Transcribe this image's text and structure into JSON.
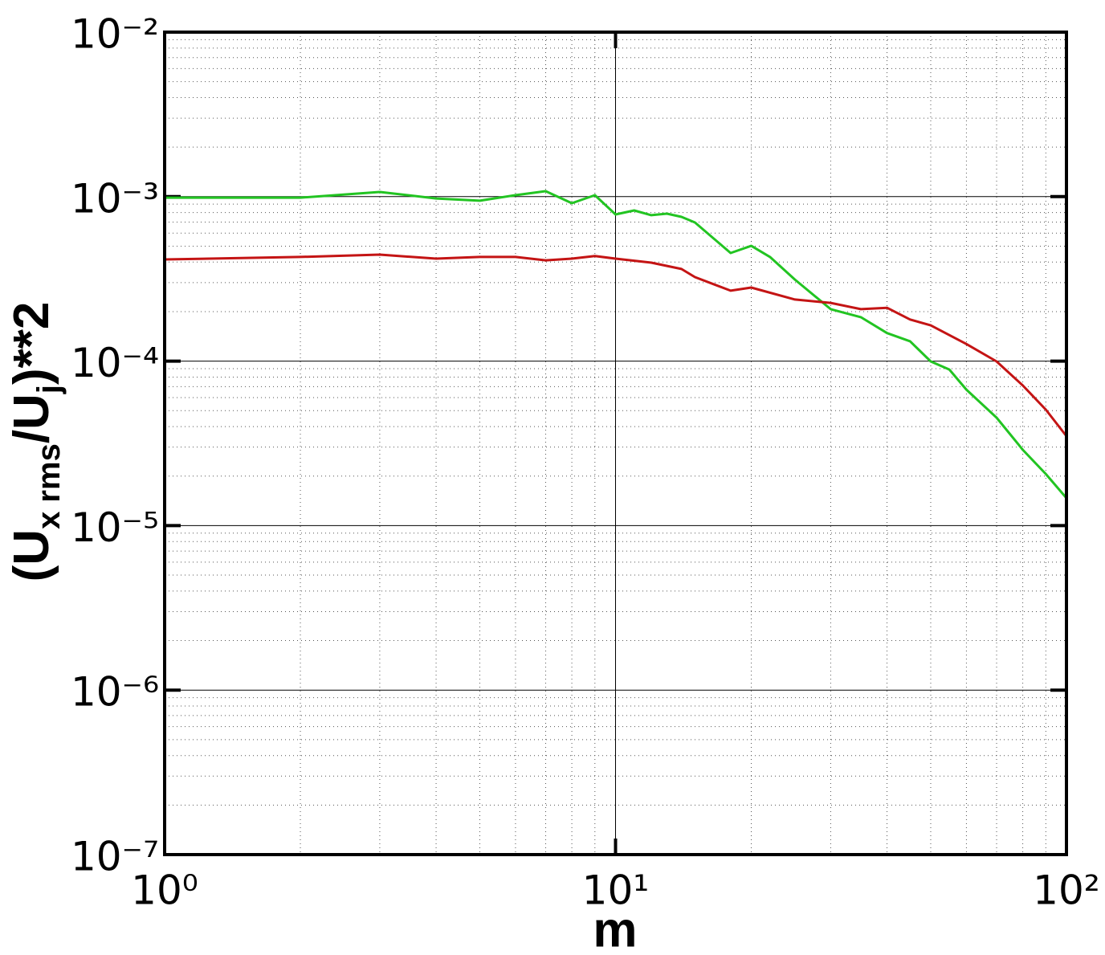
{
  "chart_data": {
    "type": "line",
    "xlabel": "m",
    "ylabel": [
      "(U",
      "x rms",
      "/U",
      "j",
      ")**2"
    ],
    "log_x": true,
    "log_y": true,
    "grid": true,
    "minor_grid": true,
    "xlim": [
      1,
      100
    ],
    "ylim": [
      1e-07,
      0.01
    ],
    "xticks": [
      {
        "value": 1,
        "label": "10⁰"
      },
      {
        "value": 10,
        "label": "10¹"
      },
      {
        "value": 100,
        "label": "10²"
      }
    ],
    "yticks": [
      {
        "value": 1e-07,
        "label": "10⁻⁷"
      },
      {
        "value": 1e-06,
        "label": "10⁻⁶"
      },
      {
        "value": 1e-05,
        "label": "10⁻⁵"
      },
      {
        "value": 0.0001,
        "label": "10⁻⁴"
      },
      {
        "value": 0.001,
        "label": "10⁻³"
      },
      {
        "value": 0.01,
        "label": "10⁻²"
      }
    ],
    "series": [
      {
        "color": "#22c422",
        "x": [
          1,
          2,
          3,
          4,
          5,
          6,
          7,
          8,
          9,
          10,
          11,
          12,
          13,
          14,
          15,
          18,
          20,
          22,
          25,
          30,
          35,
          40,
          45,
          50,
          55,
          60,
          70,
          80,
          90,
          100
        ],
        "values": [
          0.000986,
          0.000986,
          0.001067,
          0.000975,
          0.000944,
          0.00102,
          0.00108,
          0.000912,
          0.00102,
          0.000779,
          0.000824,
          0.000771,
          0.000788,
          0.000753,
          0.000696,
          0.000454,
          0.000502,
          0.00043,
          0.000313,
          0.000207,
          0.000185,
          0.000148,
          0.000132,
          9.95e-05,
          8.89e-05,
          6.71e-05,
          4.53e-05,
          2.89e-05,
          2.06e-05,
          1.47e-05
        ]
      },
      {
        "color": "#c41414",
        "x": [
          1,
          2,
          3,
          4,
          5,
          6,
          7,
          8,
          9,
          10,
          12,
          14,
          15,
          18,
          20,
          25,
          30,
          35,
          40,
          45,
          50,
          60,
          70,
          80,
          90,
          100
        ],
        "values": [
          0.000415,
          0.00043,
          0.000444,
          0.00042,
          0.00043,
          0.00043,
          0.00041,
          0.00042,
          0.000435,
          0.00042,
          0.000397,
          0.000363,
          0.000324,
          0.000268,
          0.00028,
          0.000237,
          0.000226,
          0.000207,
          0.000211,
          0.000179,
          0.000165,
          0.000127,
          9.95e-05,
          7.11e-05,
          5.07e-05,
          3.5e-05
        ]
      }
    ]
  }
}
